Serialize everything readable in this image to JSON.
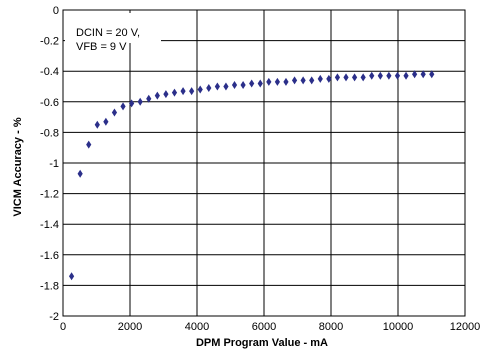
{
  "chart_data": {
    "type": "scatter",
    "title": "",
    "xlabel": "DPM Program Value - mA",
    "ylabel": "VICM Accuracy - %",
    "xlim": [
      0,
      12000
    ],
    "ylim": [
      -2,
      0
    ],
    "x_ticks": [
      0,
      2000,
      4000,
      6000,
      8000,
      10000,
      12000
    ],
    "y_ticks": [
      0,
      -0.2,
      -0.4,
      -0.6,
      -0.8,
      -1,
      -1.2,
      -1.4,
      -1.6,
      -1.8,
      -2
    ],
    "x_tick_labels": [
      "0",
      "2000",
      "4000",
      "6000",
      "8000",
      "10000",
      "12000"
    ],
    "y_tick_labels": [
      "0",
      "-0.2",
      "-0.4",
      "-0.6",
      "-0.8",
      "-1",
      "-1.2",
      "-1.4",
      "-1.6",
      "-1.8",
      "-2"
    ],
    "grid": true,
    "marker": "diamond",
    "marker_color": "#2b2f8a",
    "annotation": [
      "DCIN = 20 V,",
      "VFB = 9 V"
    ],
    "series": [
      {
        "x": [
          256,
          512,
          768,
          1024,
          1280,
          1536,
          1792,
          2048,
          2304,
          2560,
          2816,
          3072,
          3328,
          3584,
          3840,
          4096,
          4352,
          4608,
          4864,
          5120,
          5376,
          5632,
          5888,
          6144,
          6400,
          6656,
          6912,
          7168,
          7424,
          7680,
          7936,
          8192,
          8448,
          8704,
          8960,
          9216,
          9472,
          9728,
          9984,
          10240,
          10496,
          10752,
          11008
        ],
        "y": [
          -1.74,
          -1.07,
          -0.88,
          -0.75,
          -0.73,
          -0.67,
          -0.63,
          -0.61,
          -0.6,
          -0.58,
          -0.56,
          -0.55,
          -0.54,
          -0.53,
          -0.53,
          -0.52,
          -0.51,
          -0.5,
          -0.5,
          -0.49,
          -0.49,
          -0.48,
          -0.48,
          -0.47,
          -0.47,
          -0.47,
          -0.46,
          -0.46,
          -0.46,
          -0.45,
          -0.45,
          -0.44,
          -0.44,
          -0.44,
          -0.44,
          -0.43,
          -0.43,
          -0.43,
          -0.43,
          -0.43,
          -0.42,
          -0.42,
          -0.42
        ]
      }
    ]
  }
}
